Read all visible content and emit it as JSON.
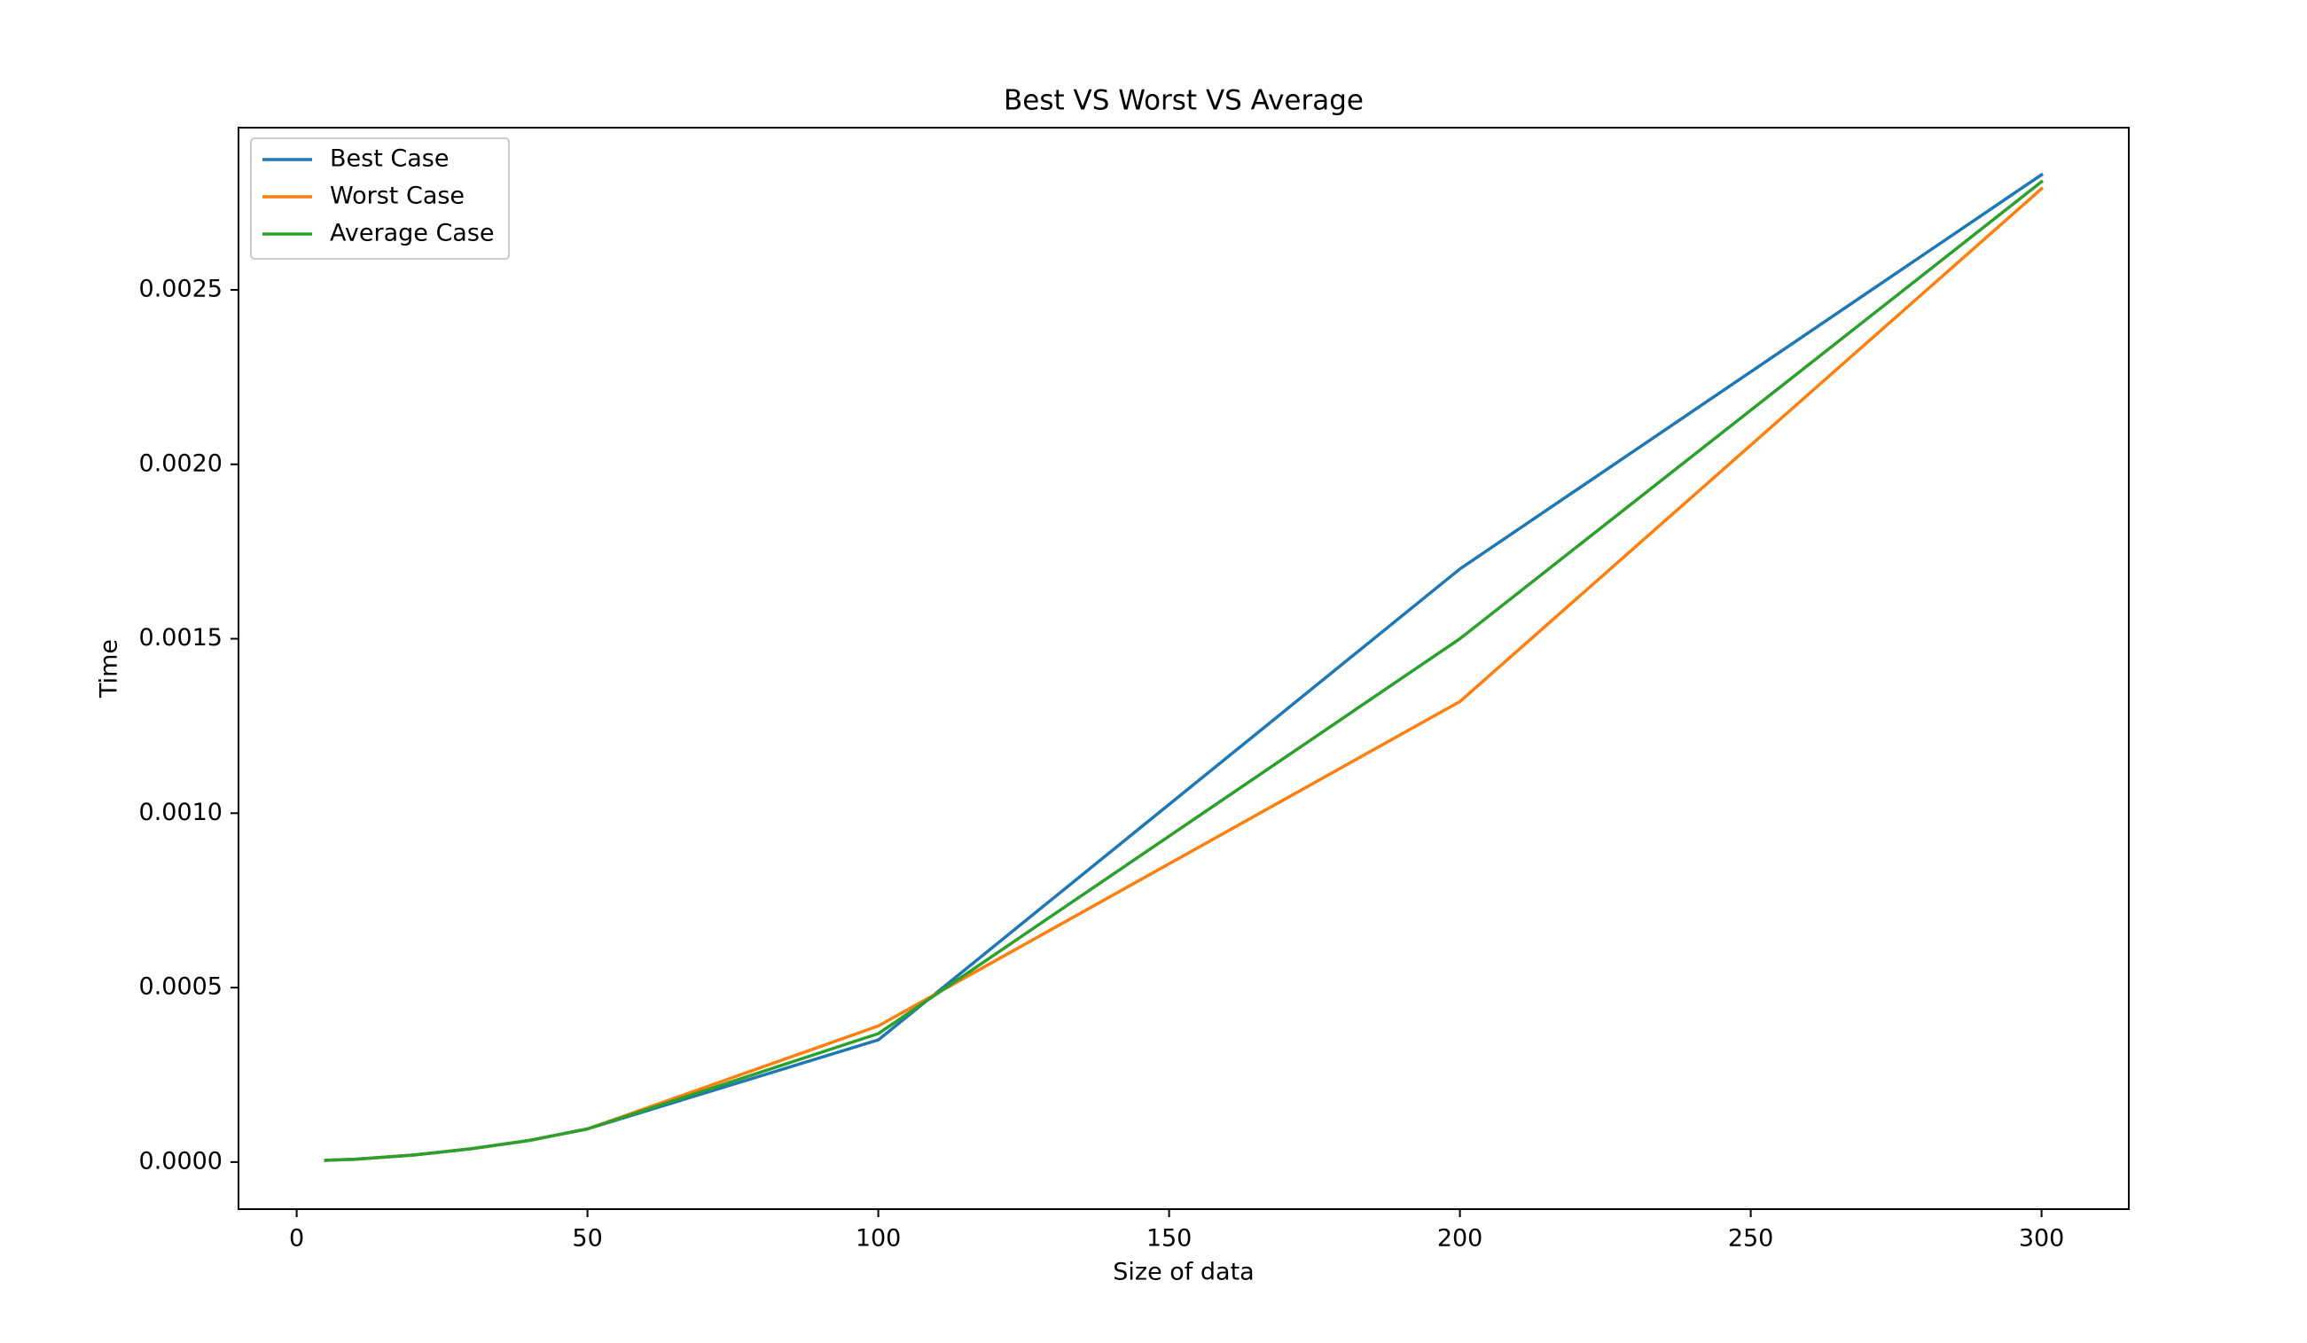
{
  "chart_data": {
    "type": "line",
    "title": "Best VS Worst VS Average",
    "xlabel": "Size of data",
    "ylabel": "Time",
    "xlim": [
      -10,
      315
    ],
    "ylim": [
      -0.000135,
      0.002965
    ],
    "xticks": [
      0,
      50,
      100,
      150,
      200,
      250,
      300
    ],
    "xtick_labels": [
      "0",
      "50",
      "100",
      "150",
      "200",
      "250",
      "300"
    ],
    "yticks": [
      0,
      0.0005,
      0.001,
      0.0015,
      0.002,
      0.0025
    ],
    "ytick_labels": [
      "0.0000",
      "0.0005",
      "0.0010",
      "0.0015",
      "0.0020",
      "0.0025"
    ],
    "grid": false,
    "legend_position": "top-left",
    "x": [
      5,
      10,
      20,
      30,
      40,
      50,
      100,
      200,
      300
    ],
    "series": [
      {
        "name": "Best Case",
        "color": "#1f77b4",
        "values": [
          5e-06,
          8e-06,
          2e-05,
          3.8e-05,
          6.2e-05,
          9.5e-05,
          0.00035,
          0.0017,
          0.00283
        ]
      },
      {
        "name": "Worst Case",
        "color": "#ff7f0e",
        "values": [
          5e-06,
          8e-06,
          2e-05,
          3.8e-05,
          6.2e-05,
          9.5e-05,
          0.00039,
          0.00132,
          0.00279
        ]
      },
      {
        "name": "Average Case",
        "color": "#2ca02c",
        "values": [
          5e-06,
          8e-06,
          2e-05,
          3.8e-05,
          6.2e-05,
          9.5e-05,
          0.000368,
          0.0015,
          0.00281
        ]
      }
    ]
  }
}
